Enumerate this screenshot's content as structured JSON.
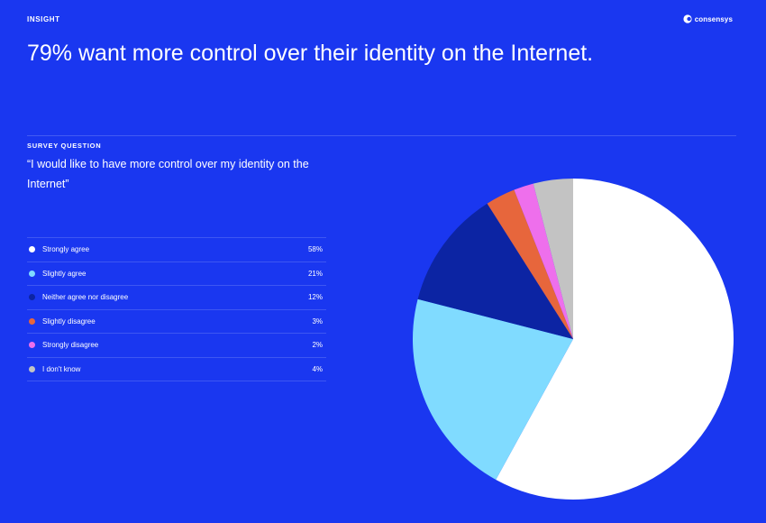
{
  "header": {
    "kicker": "INSIGHT",
    "brand": "consensys",
    "headline": "79% want more control over their identity on the Internet."
  },
  "survey": {
    "label": "SURVEY QUESTION",
    "question": "“I would like to have more control over my identity on the Internet”"
  },
  "colors": {
    "background": "#1a37f0",
    "strongly_agree": "#ffffff",
    "slightly_agree": "#80dbff",
    "neither": "#0c24a3",
    "slightly_disagree": "#e7663c",
    "strongly_disagree": "#ee6fec",
    "dont_know": "#c3c3c3"
  },
  "chart_data": {
    "type": "pie",
    "title": "79% want more control over their identity on the Internet.",
    "categories": [
      "Strongly agree",
      "Slightly agree",
      "Neither agree nor disagree",
      "Slightly disagree",
      "Strongly disagree",
      "I don't know"
    ],
    "values": [
      58,
      21,
      12,
      3,
      2,
      4
    ],
    "value_labels": [
      "58%",
      "21%",
      "12%",
      "3%",
      "2%",
      "4%"
    ],
    "colors": [
      "#ffffff",
      "#80dbff",
      "#0c24a3",
      "#e7663c",
      "#ee6fec",
      "#c3c3c3"
    ],
    "start": "12 o'clock",
    "direction": "clockwise",
    "legend_placement": "left"
  }
}
